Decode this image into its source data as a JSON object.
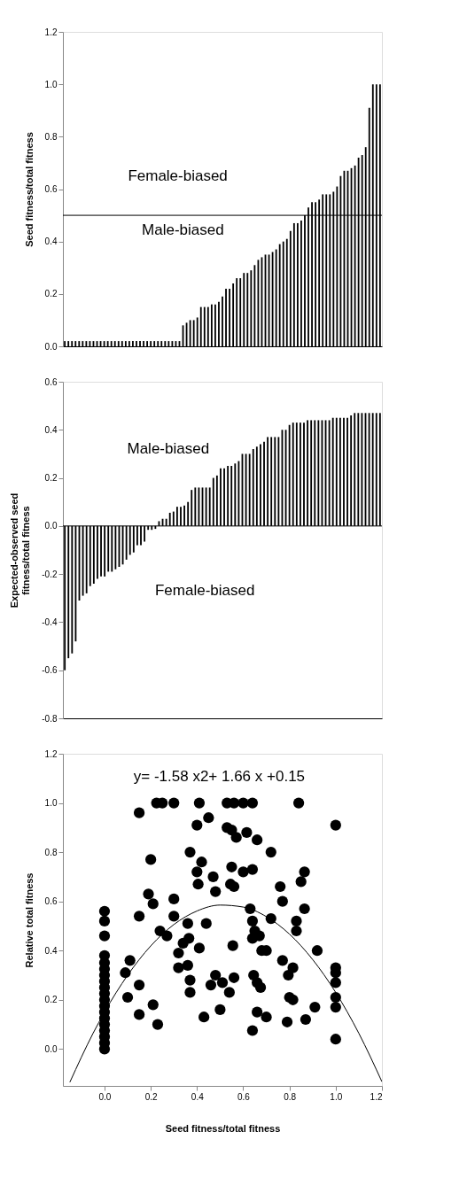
{
  "chart_data": [
    {
      "type": "bar",
      "ylabel": "Seed fitness/total fitness",
      "tick_labels": "y",
      "categories": [
        null,
        null,
        null,
        null,
        null,
        null,
        null,
        null,
        null,
        null,
        null,
        null,
        null,
        null,
        null,
        null,
        null,
        null,
        null,
        null,
        null,
        null,
        null,
        null,
        null,
        null,
        null,
        null,
        null,
        null,
        null,
        null,
        null,
        null,
        null,
        null,
        null,
        null,
        null,
        null,
        null,
        null,
        null,
        null,
        null,
        null,
        null,
        null,
        null,
        null,
        null,
        null,
        null,
        null,
        null,
        null,
        null,
        null,
        null,
        null,
        null,
        null,
        null,
        null,
        null,
        null,
        null,
        null,
        null,
        null,
        null,
        null,
        null,
        null,
        null,
        null,
        null,
        null,
        null,
        null,
        null,
        null,
        null,
        null,
        null,
        null,
        null,
        null,
        null
      ],
      "values": [
        0.02,
        0.02,
        0.02,
        0.02,
        0.02,
        0.02,
        0.02,
        0.02,
        0.02,
        0.02,
        0.02,
        0.02,
        0.02,
        0.02,
        0.02,
        0.02,
        0.02,
        0.02,
        0.02,
        0.02,
        0.02,
        0.02,
        0.02,
        0.02,
        0.02,
        0.02,
        0.02,
        0.02,
        0.02,
        0.02,
        0.02,
        0.02,
        0.02,
        0.08,
        0.09,
        0.1,
        0.1,
        0.11,
        0.15,
        0.15,
        0.15,
        0.16,
        0.16,
        0.17,
        0.19,
        0.22,
        0.22,
        0.24,
        0.26,
        0.26,
        0.28,
        0.28,
        0.29,
        0.31,
        0.33,
        0.34,
        0.35,
        0.35,
        0.36,
        0.37,
        0.39,
        0.4,
        0.41,
        0.44,
        0.47,
        0.47,
        0.48,
        0.5,
        0.53,
        0.55,
        0.55,
        0.56,
        0.58,
        0.58,
        0.58,
        0.59,
        0.61,
        0.65,
        0.67,
        0.67,
        0.68,
        0.69,
        0.72,
        0.73,
        0.76,
        0.91,
        1.0,
        1.0,
        1.0
      ],
      "color": "#000000",
      "ylim": [
        0,
        1.2
      ],
      "yticks": [
        {
          "value": 0,
          "label": "0.0"
        },
        {
          "value": 0.2,
          "label": "0.2"
        },
        {
          "value": 0.4,
          "label": "0.4"
        },
        {
          "value": 0.6,
          "label": "0.6"
        },
        {
          "value": 0.8,
          "label": "0.8"
        },
        {
          "value": 1.0,
          "label": "1.0"
        },
        {
          "value": 1.2,
          "label": "1.2"
        }
      ],
      "ref_lines": [
        {
          "axis": "y",
          "value": 0.5,
          "color": "#000000"
        }
      ],
      "annotations": [
        "Female-biased",
        "Male-biased"
      ]
    },
    {
      "type": "bar",
      "ylabel": "Expected-observed seed\nfitness/total fitness",
      "tick_labels": "y",
      "categories": [
        null,
        null,
        null,
        null,
        null,
        null,
        null,
        null,
        null,
        null,
        null,
        null,
        null,
        null,
        null,
        null,
        null,
        null,
        null,
        null,
        null,
        null,
        null,
        null,
        null,
        null,
        null,
        null,
        null,
        null,
        null,
        null,
        null,
        null,
        null,
        null,
        null,
        null,
        null,
        null,
        null,
        null,
        null,
        null,
        null,
        null,
        null,
        null,
        null,
        null,
        null,
        null,
        null,
        null,
        null,
        null,
        null,
        null,
        null,
        null,
        null,
        null,
        null,
        null,
        null,
        null,
        null,
        null,
        null,
        null,
        null,
        null,
        null,
        null,
        null,
        null,
        null,
        null,
        null,
        null,
        null,
        null,
        null,
        null,
        null,
        null,
        null,
        null
      ],
      "values": [
        -0.6,
        -0.55,
        -0.53,
        -0.48,
        -0.31,
        -0.29,
        -0.28,
        -0.25,
        -0.24,
        -0.22,
        -0.21,
        -0.21,
        -0.19,
        -0.19,
        -0.18,
        -0.17,
        -0.16,
        -0.14,
        -0.12,
        -0.11,
        -0.08,
        -0.08,
        -0.065,
        -0.016,
        -0.016,
        -0.012,
        0.02,
        0.03,
        0.03,
        0.055,
        0.06,
        0.08,
        0.08,
        0.085,
        0.1,
        0.15,
        0.16,
        0.16,
        0.16,
        0.16,
        0.16,
        0.2,
        0.21,
        0.24,
        0.24,
        0.25,
        0.25,
        0.26,
        0.27,
        0.3,
        0.3,
        0.3,
        0.32,
        0.33,
        0.34,
        0.35,
        0.37,
        0.37,
        0.37,
        0.37,
        0.4,
        0.4,
        0.42,
        0.43,
        0.43,
        0.43,
        0.43,
        0.44,
        0.44,
        0.44,
        0.44,
        0.44,
        0.44,
        0.44,
        0.45,
        0.45,
        0.45,
        0.45,
        0.45,
        0.46,
        0.47,
        0.47,
        0.47,
        0.47,
        0.47,
        0.47,
        0.47,
        0.47
      ],
      "color": "#000000",
      "ylim": [
        -0.8,
        0.6
      ],
      "yticks": [
        {
          "value": -0.8,
          "label": "-0.8"
        },
        {
          "value": -0.6,
          "label": "-0.6"
        },
        {
          "value": -0.4,
          "label": "-0.4"
        },
        {
          "value": -0.2,
          "label": "-0.2"
        },
        {
          "value": 0,
          "label": "0.0"
        },
        {
          "value": 0.2,
          "label": "0.2"
        },
        {
          "value": 0.4,
          "label": "0.4"
        },
        {
          "value": 0.6,
          "label": "0.6"
        }
      ],
      "ref_lines": [
        {
          "axis": "y",
          "value": 0,
          "color": "#000000"
        }
      ],
      "annotations": [
        "Male-biased",
        "Female-biased"
      ]
    },
    {
      "type": "scatter",
      "xlabel": "Seed fitness/total fitness",
      "ylabel": "Relative total fitness",
      "marker": "circle",
      "xlim": [
        -0.18,
        1.2
      ],
      "ylim": [
        -0.15,
        1.2
      ],
      "xticks": [
        {
          "value": 0,
          "label": "0.0"
        },
        {
          "value": 0.2,
          "label": "0.2"
        },
        {
          "value": 0.4,
          "label": "0.4"
        },
        {
          "value": 0.6,
          "label": "0.6"
        },
        {
          "value": 0.8,
          "label": "0.8"
        },
        {
          "value": 1.0,
          "label": "1.0"
        },
        {
          "value": 1.2,
          "label": "1.2"
        }
      ],
      "yticks": [
        {
          "value": 0,
          "label": "0.0"
        },
        {
          "value": 0.2,
          "label": "0.2"
        },
        {
          "value": 0.4,
          "label": "0.4"
        },
        {
          "value": 0.6,
          "label": "0.6"
        },
        {
          "value": 0.8,
          "label": "0.8"
        },
        {
          "value": 1.0,
          "label": "1.0"
        },
        {
          "value": 1.2,
          "label": "1.2"
        }
      ],
      "series": [
        {
          "type": "scatter",
          "color": "#000000",
          "x": [
            0,
            0,
            0,
            0,
            0,
            0,
            0,
            0,
            0,
            0,
            0,
            0,
            0,
            0,
            0,
            0,
            0,
            0,
            0,
            0.15,
            0.225,
            0.25,
            0.3,
            0.41,
            0.45,
            0.4,
            0.53,
            0.56,
            0.6,
            0.64,
            0.84,
            1.0,
            0.53,
            0.55,
            0.57,
            0.615,
            0.66,
            0.72,
            0.37,
            0.2,
            0.42,
            0.4,
            0.47,
            0.405,
            0.48,
            0.55,
            0.6,
            0.64,
            0.545,
            0.56,
            0.865,
            0.85,
            0.76,
            0.77,
            0.865,
            0.83,
            0.83,
            0.19,
            0.21,
            0.3,
            0.15,
            0.3,
            0.36,
            0.44,
            0.63,
            0.64,
            0.65,
            0.67,
            0.64,
            0.72,
            0.24,
            0.27,
            0.365,
            0.34,
            0.32,
            0.41,
            0.555,
            0.68,
            0.7,
            0.92,
            0.11,
            0.09,
            0.32,
            0.36,
            0.37,
            0.37,
            0.48,
            0.46,
            0.51,
            0.56,
            0.54,
            0.645,
            0.66,
            0.675,
            0.77,
            0.815,
            0.795,
            0.8,
            0.815,
            1.0,
            1.0,
            1.0,
            1.0,
            1.0,
            1.0,
            0.15,
            0.1,
            0.21,
            0.15,
            0.23,
            0.43,
            0.5,
            0.66,
            0.7,
            0.64,
            0.79,
            0.87,
            0.91
          ],
          "values": [
            0,
            0.025,
            0.05,
            0.075,
            0.1,
            0.125,
            0.15,
            0.175,
            0.2,
            0.225,
            0.25,
            0.275,
            0.3,
            0.325,
            0.35,
            0.38,
            0.46,
            0.52,
            0.56,
            0.96,
            1.0,
            1.0,
            1.0,
            1.0,
            0.94,
            0.91,
            1.0,
            1.0,
            1.0,
            1.0,
            1.0,
            0.91,
            0.9,
            0.89,
            0.86,
            0.88,
            0.85,
            0.8,
            0.8,
            0.77,
            0.76,
            0.72,
            0.7,
            0.67,
            0.64,
            0.74,
            0.72,
            0.73,
            0.67,
            0.66,
            0.72,
            0.68,
            0.66,
            0.6,
            0.57,
            0.52,
            0.48,
            0.63,
            0.59,
            0.61,
            0.54,
            0.54,
            0.51,
            0.51,
            0.57,
            0.52,
            0.48,
            0.46,
            0.45,
            0.53,
            0.48,
            0.46,
            0.45,
            0.43,
            0.39,
            0.41,
            0.42,
            0.4,
            0.4,
            0.4,
            0.36,
            0.31,
            0.33,
            0.34,
            0.28,
            0.23,
            0.3,
            0.26,
            0.27,
            0.29,
            0.23,
            0.3,
            0.27,
            0.25,
            0.36,
            0.33,
            0.3,
            0.21,
            0.2,
            0.33,
            0.31,
            0.27,
            0.21,
            0.17,
            0.04,
            0.26,
            0.21,
            0.18,
            0.14,
            0.1,
            0.13,
            0.16,
            0.15,
            0.13,
            0.075,
            0.11,
            0.12,
            0.17
          ]
        },
        {
          "type": "line",
          "marker": "none",
          "color": "#000000",
          "x": [
            -0.15,
            -0.05,
            0,
            0.1,
            0.2,
            0.3,
            0.4,
            0.5,
            0.6,
            0.7,
            0.8,
            0.9,
            1.0,
            1.1,
            1.2
          ],
          "values": [
            -0.135,
            0.063,
            0.15,
            0.3,
            0.419,
            0.506,
            0.561,
            0.585,
            0.577,
            0.538,
            0.467,
            0.364,
            0.23,
            0.064,
            -0.133
          ]
        }
      ],
      "annotations": [
        "y= -1.58 x2+ 1.66 x +0.15"
      ]
    }
  ]
}
